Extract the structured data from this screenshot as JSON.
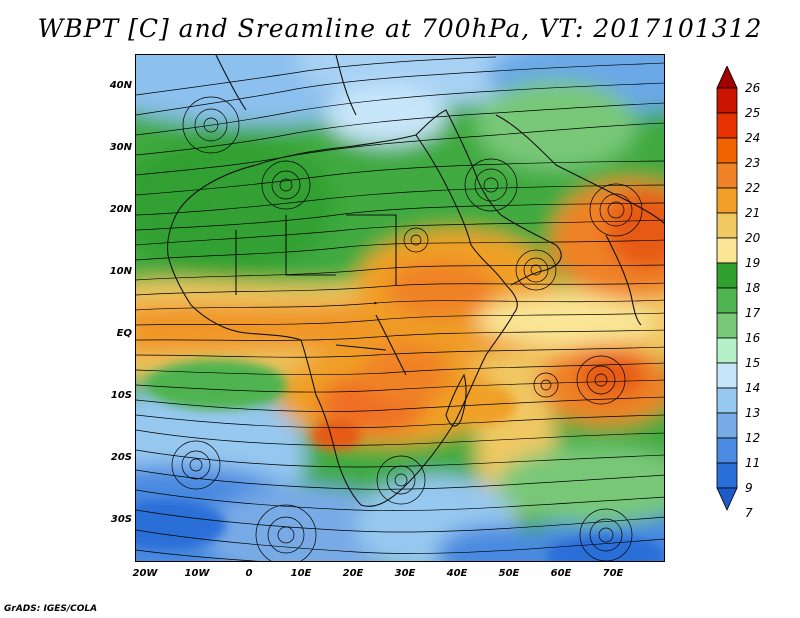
{
  "title": "WBPT [C] and Sreamline at 700hPa, VT: 2017101312",
  "credit": "GrADS: IGES/COLA",
  "y_axis_labels": [
    "40N",
    "30N",
    "20N",
    "10N",
    "EQ",
    "10S",
    "20S",
    "30S"
  ],
  "x_axis_labels": [
    "20W",
    "10W",
    "0",
    "10E",
    "20E",
    "30E",
    "40E",
    "50E",
    "60E",
    "70E"
  ],
  "colorbar": {
    "labels": [
      "26",
      "25",
      "24",
      "23",
      "22",
      "21",
      "20",
      "19",
      "18",
      "17",
      "16",
      "15",
      "14",
      "13",
      "12",
      "11",
      "9",
      "7"
    ],
    "colors": [
      "#a00000",
      "#c81400",
      "#e63200",
      "#f06400",
      "#f08228",
      "#f0a028",
      "#f0c864",
      "#fae696",
      "#30a030",
      "#50b450",
      "#78c878",
      "#b4f0c8",
      "#c8e6fa",
      "#96c8f0",
      "#78aae6",
      "#4a8ae0",
      "#2a6ed8",
      "#1e5ac8"
    ]
  }
}
